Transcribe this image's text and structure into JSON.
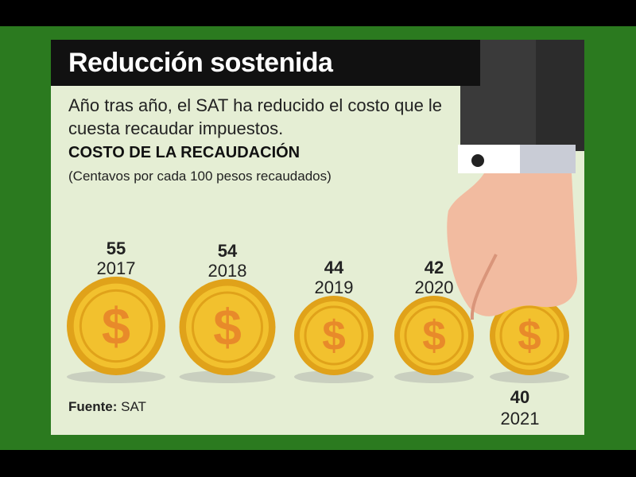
{
  "header": {
    "title": "Reducción sostenida",
    "subtitle": "Año tras año, el SAT ha reducido el costo que le cuesta recaudar impuestos.",
    "chart_title": "COSTO DE LA RECAUDACIÓN",
    "unit": "(Centavos por cada 100 pesos recaudados)"
  },
  "source": {
    "label": "Fuente:",
    "value": "SAT"
  },
  "colors": {
    "frame": "#2b7a1f",
    "card": "#e6f0d6",
    "coin": "#f2c12e",
    "coin_dark": "#e0a21a",
    "dollar": "#e88a2a",
    "title_bar": "#111111"
  },
  "icons": {
    "coin": "dollar-coin-icon",
    "hand": "hand-sleeve-illustration"
  },
  "chart_data": {
    "type": "bar",
    "title": "COSTO DE LA RECAUDACIÓN",
    "ylabel": "",
    "xlabel": "",
    "categories": [
      "2017",
      "2018",
      "2019",
      "2020",
      "2021"
    ],
    "values": [
      55,
      54,
      44,
      42,
      40
    ],
    "value_labels": [
      "55",
      "54",
      "44",
      "42",
      "40"
    ],
    "marks": "coin size proportional to value",
    "legend": "none"
  }
}
